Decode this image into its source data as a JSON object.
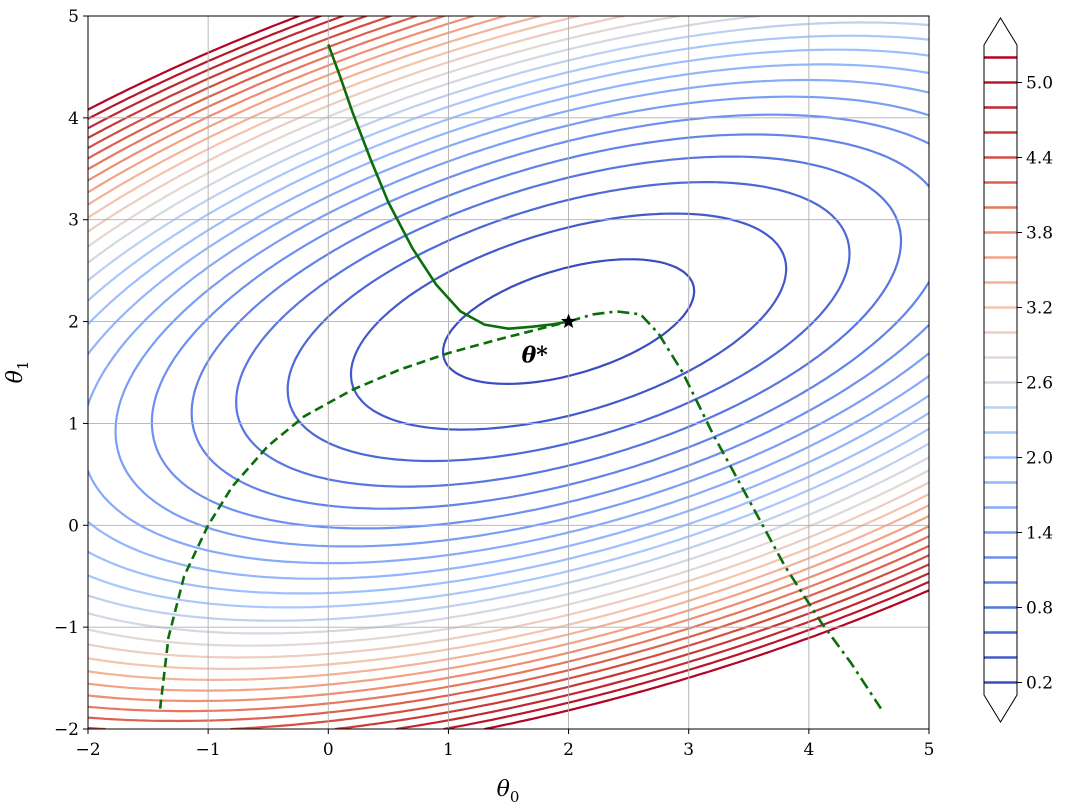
{
  "chart_data": {
    "type": "contour",
    "title": "",
    "xlabel": "θ",
    "xlabel_sub": "0",
    "ylabel": "θ",
    "ylabel_sub": "1",
    "xlim": [
      -2,
      5
    ],
    "ylim": [
      -2,
      5
    ],
    "xticks": [
      -2,
      -1,
      0,
      1,
      2,
      3,
      4,
      5
    ],
    "yticks": [
      -2,
      -1,
      0,
      1,
      2,
      3,
      4,
      5
    ],
    "grid": true,
    "colormap": "coolwarm",
    "contour_levels": [
      0.2,
      0.4,
      0.6,
      0.8,
      1.0,
      1.2,
      1.4,
      1.6,
      1.8,
      2.0,
      2.2,
      2.4,
      2.6,
      2.8,
      3.0,
      3.2,
      3.4,
      3.6,
      3.8,
      4.0,
      4.2,
      4.4,
      4.6,
      4.8,
      5.0,
      5.2
    ],
    "colorbar": {
      "ticks": [
        0.2,
        0.8,
        1.4,
        2.0,
        2.6,
        3.2,
        3.8,
        4.4,
        5.0
      ],
      "range": [
        0.1,
        5.3
      ],
      "extend": "both"
    },
    "minimum": {
      "x": 2,
      "y": 2,
      "label": "θ*"
    },
    "paths": [
      {
        "style": "solid",
        "x": [
          0.0,
          0.1,
          0.2,
          0.35,
          0.5,
          0.7,
          0.9,
          1.1,
          1.3,
          1.5,
          1.7,
          1.85,
          2.0
        ],
        "y": [
          4.72,
          4.4,
          4.06,
          3.6,
          3.17,
          2.72,
          2.36,
          2.1,
          1.97,
          1.93,
          1.95,
          1.97,
          2.0
        ]
      },
      {
        "style": "dashed",
        "x": [
          -1.4,
          -1.33,
          -1.2,
          -1.0,
          -0.8,
          -0.5,
          -0.2,
          0.2,
          0.6,
          1.0,
          1.4,
          1.7,
          2.0
        ],
        "y": [
          -1.8,
          -1.1,
          -0.5,
          0.0,
          0.38,
          0.78,
          1.07,
          1.33,
          1.53,
          1.69,
          1.82,
          1.91,
          2.0
        ]
      },
      {
        "style": "dashdot",
        "x": [
          2.0,
          2.2,
          2.4,
          2.6,
          2.75,
          2.95,
          3.2,
          3.5,
          3.8,
          4.1,
          4.35,
          4.6
        ],
        "y": [
          2.0,
          2.07,
          2.1,
          2.07,
          1.88,
          1.5,
          0.9,
          0.25,
          -0.4,
          -0.95,
          -1.35,
          -1.8
        ]
      }
    ]
  }
}
